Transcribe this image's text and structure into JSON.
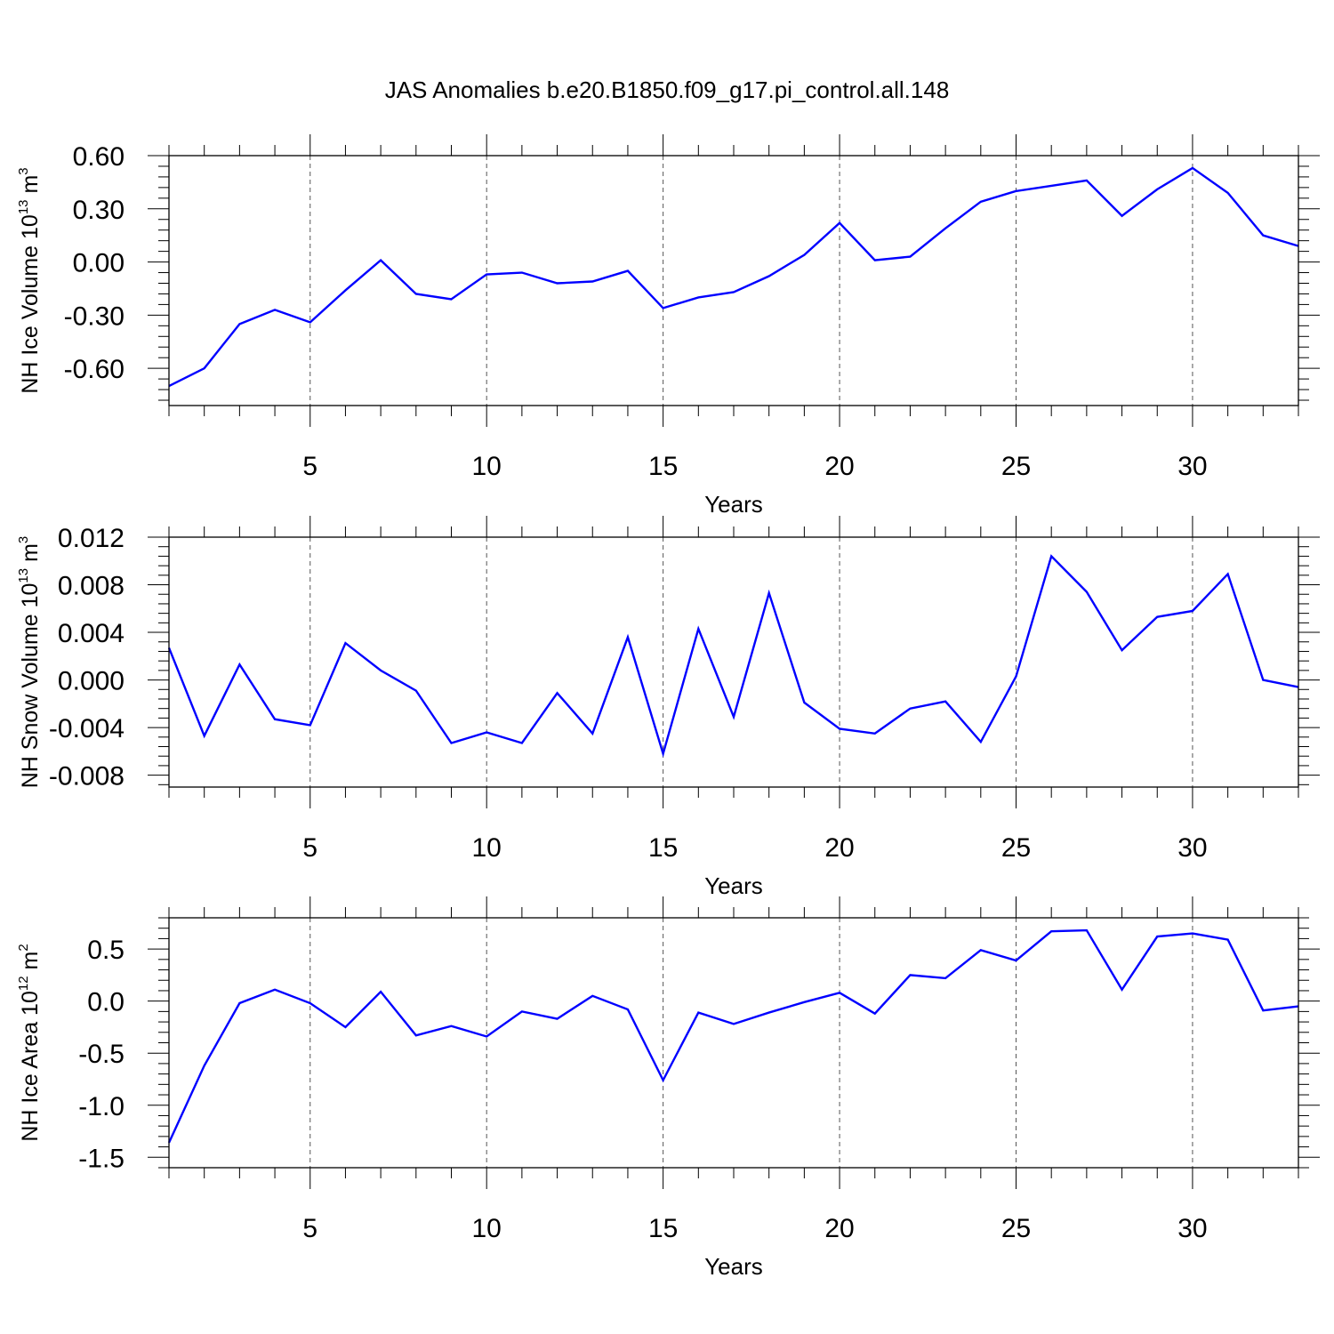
{
  "figure": {
    "title": "JAS Anomalies b.e20.B1850.f09_g17.pi_control.all.148",
    "line_color": "#0000ff"
  },
  "chart_data": [
    {
      "type": "line",
      "ylabel": {
        "base": "NH Ice Volume 10",
        "exp": "13",
        "unit": " m",
        "unit_exp": "3"
      },
      "xlabel": "Years",
      "xlim": [
        1,
        33
      ],
      "ylim": [
        -0.81,
        0.6
      ],
      "x_ticks": [
        5,
        10,
        15,
        20,
        25,
        30
      ],
      "x_tick_labels": [
        "5",
        "10",
        "15",
        "20",
        "25",
        "30"
      ],
      "y_ticks": [
        0.6,
        0.3,
        0.0,
        -0.3,
        -0.6
      ],
      "y_tick_labels": [
        "0.60",
        "0.30",
        "0.00",
        "-0.30",
        "-0.60"
      ],
      "grid": "vertical dashed at major x ticks",
      "series": [
        {
          "x": [
            1,
            2,
            3,
            4,
            5,
            6,
            7,
            8,
            9,
            10,
            11,
            12,
            13,
            14,
            15,
            16,
            17,
            18,
            19,
            20,
            21,
            22,
            23,
            24,
            25,
            26,
            27,
            28,
            29,
            30,
            31,
            32,
            33
          ],
          "values": [
            -0.7,
            -0.6,
            -0.35,
            -0.27,
            -0.34,
            -0.16,
            0.01,
            -0.18,
            -0.21,
            -0.07,
            -0.06,
            -0.12,
            -0.11,
            -0.05,
            -0.26,
            -0.2,
            -0.17,
            -0.08,
            0.04,
            0.22,
            0.01,
            0.03,
            0.19,
            0.34,
            0.4,
            0.43,
            0.46,
            0.26,
            0.41,
            0.53,
            0.39,
            0.15,
            0.09
          ]
        }
      ]
    },
    {
      "type": "line",
      "ylabel": {
        "base": "NH Snow Volume 10",
        "exp": "13",
        "unit": " m",
        "unit_exp": "3"
      },
      "xlabel": "Years",
      "xlim": [
        1,
        33
      ],
      "ylim": [
        -0.009,
        0.012
      ],
      "x_ticks": [
        5,
        10,
        15,
        20,
        25,
        30
      ],
      "x_tick_labels": [
        "5",
        "10",
        "15",
        "20",
        "25",
        "30"
      ],
      "y_ticks": [
        0.012,
        0.008,
        0.004,
        0.0,
        -0.004,
        -0.008
      ],
      "y_tick_labels": [
        "0.012",
        "0.008",
        "0.004",
        "0.000",
        "-0.004",
        "-0.008"
      ],
      "grid": "vertical dashed at major x ticks",
      "series": [
        {
          "x": [
            1,
            2,
            3,
            4,
            5,
            6,
            7,
            8,
            9,
            10,
            11,
            12,
            13,
            14,
            15,
            16,
            17,
            18,
            19,
            20,
            21,
            22,
            23,
            24,
            25,
            26,
            27,
            28,
            29,
            30,
            31,
            32,
            33
          ],
          "values": [
            0.0027,
            -0.0047,
            0.0013,
            -0.0033,
            -0.0038,
            0.0031,
            0.0008,
            -0.0009,
            -0.0053,
            -0.0044,
            -0.0053,
            -0.0011,
            -0.0045,
            0.0036,
            -0.0062,
            0.0043,
            -0.0031,
            0.0073,
            -0.0019,
            -0.0041,
            -0.0045,
            -0.0024,
            -0.0018,
            -0.0052,
            0.0003,
            0.0104,
            0.0074,
            0.0025,
            0.0053,
            0.0058,
            0.0089,
            0.0,
            -0.0006
          ]
        }
      ]
    },
    {
      "type": "line",
      "ylabel": {
        "base": "NH Ice Area 10",
        "exp": "12",
        "unit": " m",
        "unit_exp": "2"
      },
      "xlabel": "Years",
      "xlim": [
        1,
        33
      ],
      "ylim": [
        -1.6,
        0.8
      ],
      "x_ticks": [
        5,
        10,
        15,
        20,
        25,
        30
      ],
      "x_tick_labels": [
        "5",
        "10",
        "15",
        "20",
        "25",
        "30"
      ],
      "y_ticks": [
        0.5,
        0.0,
        -0.5,
        -1.0,
        -1.5
      ],
      "y_tick_labels": [
        "0.5",
        "0.0",
        "-0.5",
        "-1.0",
        "-1.5"
      ],
      "grid": "vertical dashed at major x ticks",
      "series": [
        {
          "x": [
            1,
            2,
            3,
            4,
            5,
            6,
            7,
            8,
            9,
            10,
            11,
            12,
            13,
            14,
            15,
            16,
            17,
            18,
            19,
            20,
            21,
            22,
            23,
            24,
            25,
            26,
            27,
            28,
            29,
            30,
            31,
            32,
            33
          ],
          "values": [
            -1.36,
            -0.62,
            -0.02,
            0.11,
            -0.02,
            -0.25,
            0.09,
            -0.33,
            -0.24,
            -0.34,
            -0.1,
            -0.17,
            0.05,
            -0.08,
            -0.76,
            -0.11,
            -0.22,
            -0.11,
            -0.01,
            0.08,
            -0.12,
            0.25,
            0.22,
            0.49,
            0.39,
            0.67,
            0.68,
            0.11,
            0.62,
            0.65,
            0.59,
            -0.09,
            -0.05
          ]
        }
      ]
    }
  ]
}
